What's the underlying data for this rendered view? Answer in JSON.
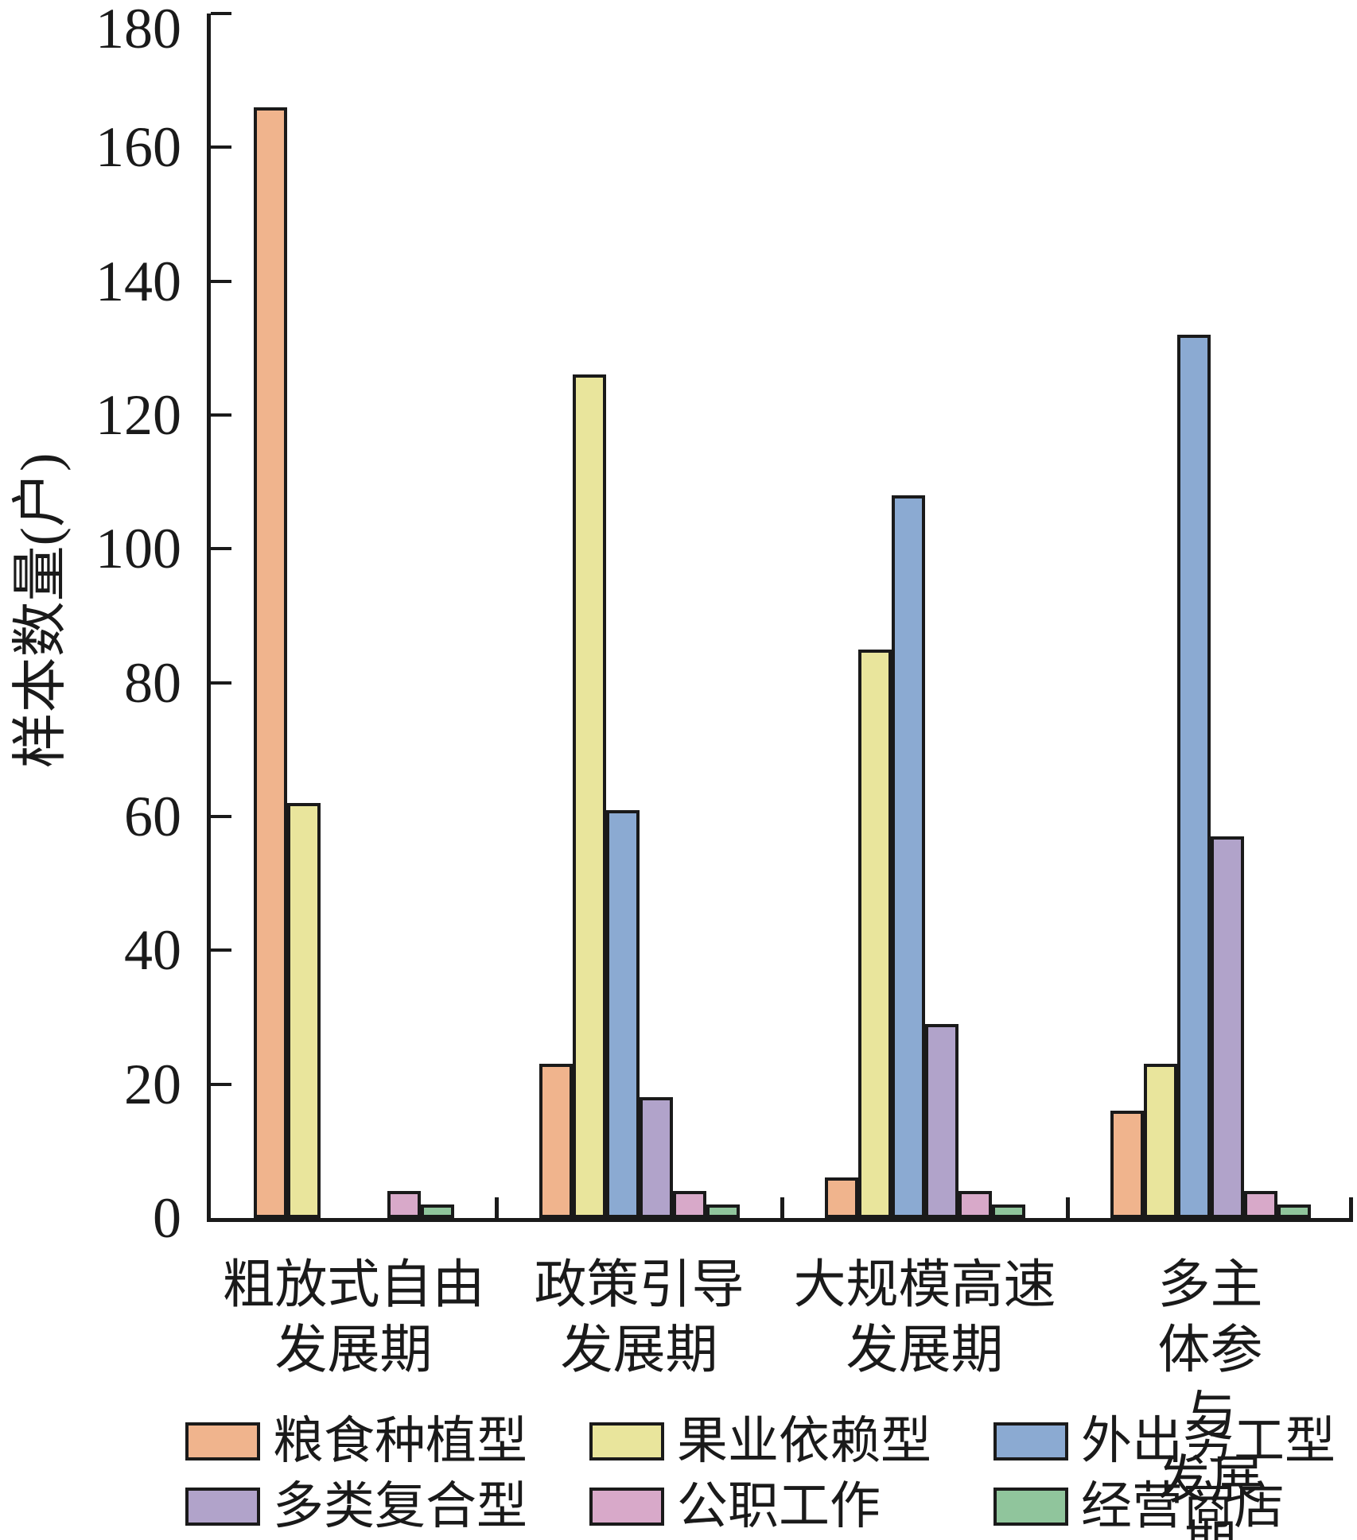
{
  "colors": {
    "ink": "#1a1a1a",
    "background": "#ffffff"
  },
  "chart_data": {
    "type": "bar",
    "title": "",
    "xlabel": "",
    "ylabel": "样本数量(户)",
    "ylim": [
      0,
      180
    ],
    "ytick_step": 20,
    "yticks": [
      0,
      20,
      40,
      60,
      80,
      100,
      120,
      140,
      160,
      180
    ],
    "grid": false,
    "legend_position": "bottom",
    "categories": [
      "粗放式自由\n发展期",
      "政策引导\n发展期",
      "大规模高速\n发展期",
      "多主体参与\n发展期"
    ],
    "series": [
      {
        "name": "粮食种植型",
        "color": "#f0b48d",
        "values": [
          166,
          23,
          6,
          16
        ]
      },
      {
        "name": "果业依赖型",
        "color": "#e9e59c",
        "values": [
          62,
          126,
          85,
          23
        ]
      },
      {
        "name": "外出务工型",
        "color": "#8baad2",
        "values": [
          0,
          61,
          108,
          132
        ]
      },
      {
        "name": "多类复合型",
        "color": "#b1a3ca",
        "values": [
          0,
          18,
          29,
          57
        ]
      },
      {
        "name": "公职工作",
        "color": "#d8a9c9",
        "values": [
          4,
          4,
          4,
          4
        ]
      },
      {
        "name": "经营商店",
        "color": "#90c59c",
        "values": [
          2,
          2,
          2,
          2
        ]
      }
    ]
  }
}
